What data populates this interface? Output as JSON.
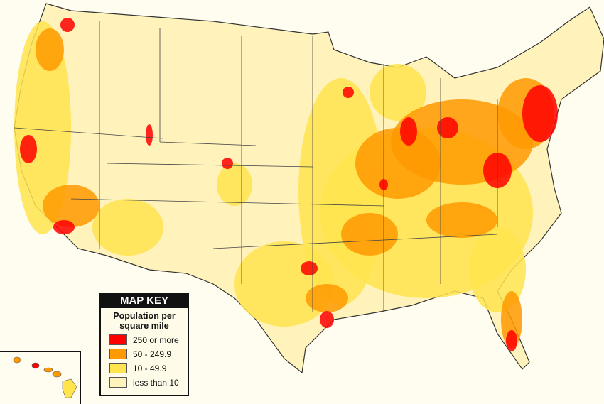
{
  "legend": {
    "title": "MAP KEY",
    "subtitle_line1": "Population per",
    "subtitle_line2": "square mile",
    "items": [
      {
        "label": "250 or more",
        "color": "#ff0000"
      },
      {
        "label": "50 - 249.9",
        "color": "#ff9900"
      },
      {
        "label": "10 - 49.9",
        "color": "#ffe44d"
      },
      {
        "label": "less than 10",
        "color": "#fff2bb"
      }
    ]
  },
  "colors": {
    "background": "#fefdf0",
    "border": "#333333"
  }
}
